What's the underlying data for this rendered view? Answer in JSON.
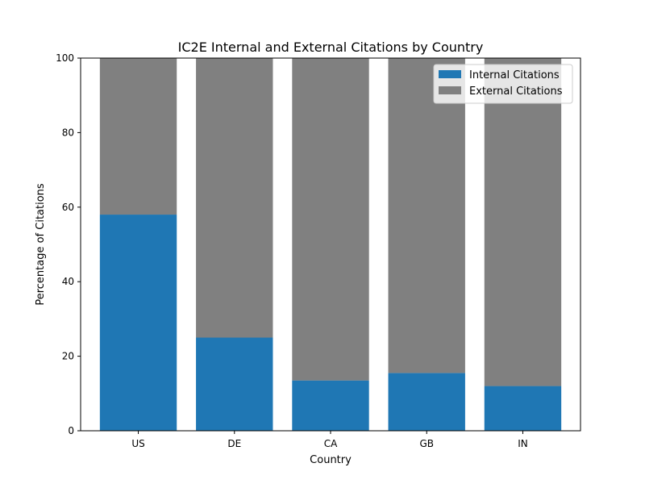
{
  "chart_data": {
    "type": "bar",
    "stacked": true,
    "title": "IC2E Internal and External Citations by Country",
    "xlabel": "Country",
    "ylabel": "Percentage of Citations",
    "categories": [
      "US",
      "DE",
      "CA",
      "GB",
      "IN"
    ],
    "ylim": [
      0,
      100
    ],
    "yticks": [
      0,
      20,
      40,
      60,
      80,
      100
    ],
    "series": [
      {
        "name": "Internal Citations",
        "color": "#1f77b4",
        "values": [
          58,
          25,
          13.5,
          15.5,
          12
        ]
      },
      {
        "name": "External Citations",
        "color": "#808080",
        "values": [
          42,
          75,
          86.5,
          84.5,
          88
        ]
      }
    ],
    "legend": "top-right",
    "grid": false
  }
}
